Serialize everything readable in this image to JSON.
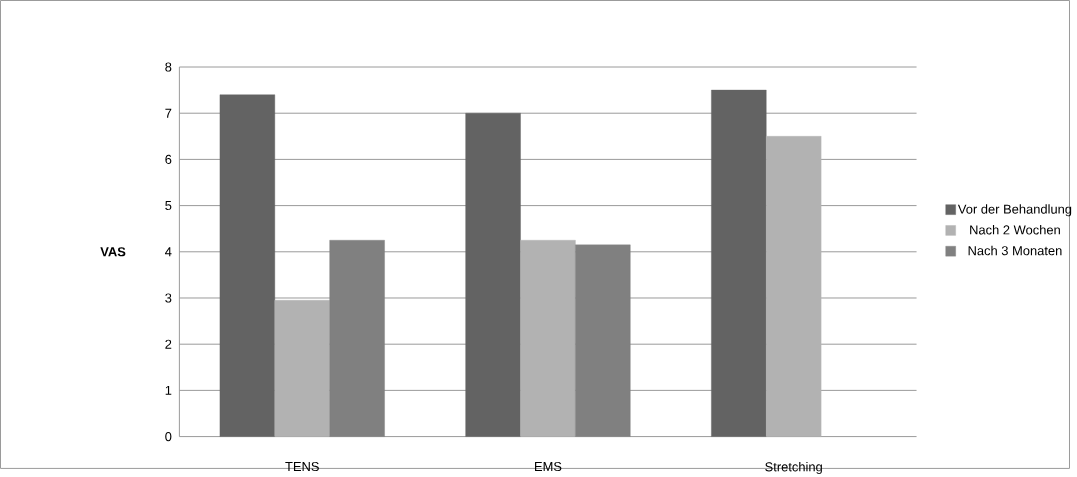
{
  "chart_data": {
    "type": "bar",
    "ylabel": "VAS",
    "categories": [
      "TENS",
      "EMS",
      "Stretching"
    ],
    "series": [
      {
        "name": "Vor der Behandlung",
        "color": "#636363",
        "values": [
          7.4,
          7.0,
          7.5
        ]
      },
      {
        "name": "Nach 2 Wochen",
        "color": "#b2b2b2",
        "values": [
          2.95,
          4.25,
          6.5
        ]
      },
      {
        "name": "Nach 3 Monaten",
        "color": "#808080",
        "values": [
          4.25,
          4.15,
          null
        ]
      }
    ],
    "ylim": [
      0,
      8
    ],
    "yticks": [
      0,
      1,
      2,
      3,
      4,
      5,
      6,
      7,
      8
    ],
    "grid": "y",
    "legend": "right"
  }
}
